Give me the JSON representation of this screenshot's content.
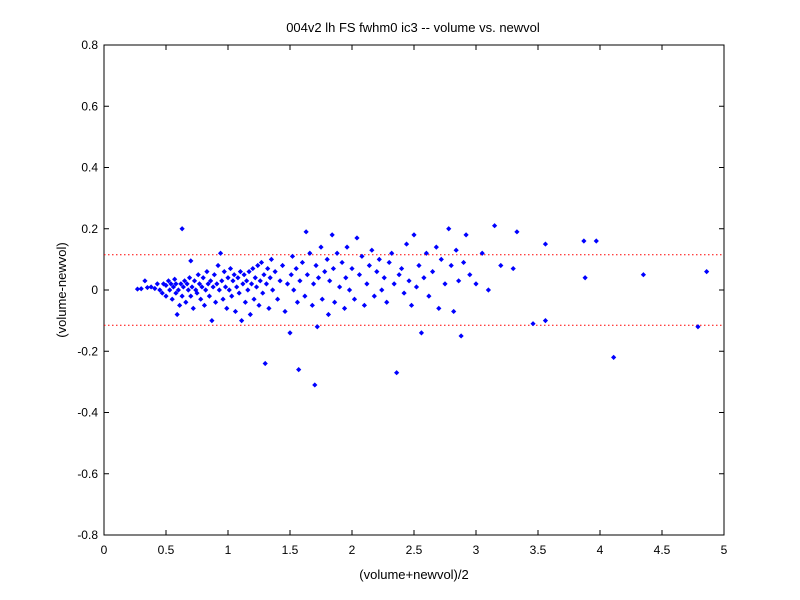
{
  "chart_data": {
    "type": "scatter",
    "title": "004v2 lh FS fwhm0 ic3 -- volume vs. newvol",
    "xlabel": "(volume+newvol)/2",
    "ylabel": "(volume-newvol)",
    "xlim": [
      0,
      5
    ],
    "ylim": [
      -0.8,
      0.8
    ],
    "xticks": [
      0,
      0.5,
      1,
      1.5,
      2,
      2.5,
      3,
      3.5,
      4,
      4.5,
      5
    ],
    "xtick_labels": [
      "0",
      "0.5",
      "1",
      "1.5",
      "2",
      "2.5",
      "3",
      "3.5",
      "4",
      "4.5",
      "5"
    ],
    "yticks": [
      -0.8,
      -0.6,
      -0.4,
      -0.2,
      0,
      0.2,
      0.4,
      0.6,
      0.8
    ],
    "ytick_labels": [
      "-0.8",
      "-0.6",
      "-0.4",
      "-0.2",
      "0",
      "0.2",
      "0.4",
      "0.6",
      "0.8"
    ],
    "grid": false,
    "marker_color": "#0000ff",
    "reference_line_color": "#ff0000",
    "reference_lines_y": [
      0.115,
      -0.115
    ],
    "series": [
      {
        "marker": "diamond",
        "points": [
          [
            0.27,
            0.003
          ],
          [
            0.3,
            0.004
          ],
          [
            0.33,
            0.03
          ],
          [
            0.35,
            0.008
          ],
          [
            0.38,
            0.01
          ],
          [
            0.41,
            0.005
          ],
          [
            0.43,
            0.02
          ],
          [
            0.45,
            0.0
          ],
          [
            0.47,
            -0.01
          ],
          [
            0.48,
            0.02
          ],
          [
            0.5,
            0.015
          ],
          [
            0.5,
            -0.02
          ],
          [
            0.52,
            0.03
          ],
          [
            0.53,
            0.0
          ],
          [
            0.54,
            0.02
          ],
          [
            0.55,
            -0.03
          ],
          [
            0.56,
            0.01
          ],
          [
            0.57,
            0.035
          ],
          [
            0.58,
            -0.01
          ],
          [
            0.58,
            0.02
          ],
          [
            0.59,
            -0.08
          ],
          [
            0.6,
            0.0
          ],
          [
            0.61,
            -0.05
          ],
          [
            0.62,
            0.02
          ],
          [
            0.63,
            0.2
          ],
          [
            0.63,
            -0.02
          ],
          [
            0.64,
            0.01
          ],
          [
            0.65,
            0.03
          ],
          [
            0.66,
            -0.04
          ],
          [
            0.67,
            0.02
          ],
          [
            0.68,
            0.0
          ],
          [
            0.69,
            0.04
          ],
          [
            0.7,
            -0.02
          ],
          [
            0.7,
            0.095
          ],
          [
            0.71,
            0.01
          ],
          [
            0.72,
            -0.06
          ],
          [
            0.73,
            0.03
          ],
          [
            0.74,
            0.0
          ],
          [
            0.75,
            -0.01
          ],
          [
            0.76,
            0.05
          ],
          [
            0.77,
            0.02
          ],
          [
            0.78,
            -0.03
          ],
          [
            0.79,
            0.01
          ],
          [
            0.8,
            0.04
          ],
          [
            0.81,
            -0.05
          ],
          [
            0.82,
            0.0
          ],
          [
            0.83,
            0.06
          ],
          [
            0.84,
            0.02
          ],
          [
            0.85,
            -0.02
          ],
          [
            0.86,
            0.03
          ],
          [
            0.87,
            -0.1
          ],
          [
            0.88,
            0.01
          ],
          [
            0.89,
            0.05
          ],
          [
            0.9,
            -0.04
          ],
          [
            0.91,
            0.02
          ],
          [
            0.92,
            0.08
          ],
          [
            0.93,
            0.0
          ],
          [
            0.94,
            0.12
          ],
          [
            0.95,
            0.03
          ],
          [
            0.96,
            -0.03
          ],
          [
            0.97,
            0.06
          ],
          [
            0.98,
            0.01
          ],
          [
            0.99,
            -0.06
          ],
          [
            1.0,
            0.04
          ],
          [
            1.01,
            0.0
          ],
          [
            1.02,
            0.07
          ],
          [
            1.03,
            -0.02
          ],
          [
            1.04,
            0.03
          ],
          [
            1.05,
            0.05
          ],
          [
            1.06,
            -0.07
          ],
          [
            1.07,
            0.01
          ],
          [
            1.08,
            0.04
          ],
          [
            1.09,
            -0.01
          ],
          [
            1.1,
            0.06
          ],
          [
            1.11,
            -0.1
          ],
          [
            1.12,
            0.02
          ],
          [
            1.13,
            0.05
          ],
          [
            1.14,
            -0.04
          ],
          [
            1.15,
            0.03
          ],
          [
            1.16,
            0.0
          ],
          [
            1.17,
            0.06
          ],
          [
            1.18,
            -0.08
          ],
          [
            1.19,
            0.02
          ],
          [
            1.2,
            0.07
          ],
          [
            1.21,
            -0.03
          ],
          [
            1.22,
            0.04
          ],
          [
            1.23,
            0.01
          ],
          [
            1.24,
            0.08
          ],
          [
            1.25,
            -0.05
          ],
          [
            1.26,
            0.03
          ],
          [
            1.27,
            0.09
          ],
          [
            1.28,
            -0.01
          ],
          [
            1.29,
            0.05
          ],
          [
            1.3,
            -0.24
          ],
          [
            1.31,
            0.02
          ],
          [
            1.32,
            0.07
          ],
          [
            1.33,
            -0.06
          ],
          [
            1.34,
            0.04
          ],
          [
            1.35,
            0.1
          ],
          [
            1.36,
            0.0
          ],
          [
            1.38,
            0.06
          ],
          [
            1.4,
            -0.03
          ],
          [
            1.42,
            0.03
          ],
          [
            1.44,
            0.08
          ],
          [
            1.46,
            -0.07
          ],
          [
            1.48,
            0.02
          ],
          [
            1.5,
            -0.14
          ],
          [
            1.51,
            0.05
          ],
          [
            1.52,
            0.11
          ],
          [
            1.53,
            0.0
          ],
          [
            1.55,
            0.07
          ],
          [
            1.56,
            -0.04
          ],
          [
            1.57,
            -0.26
          ],
          [
            1.58,
            0.03
          ],
          [
            1.6,
            0.09
          ],
          [
            1.62,
            -0.02
          ],
          [
            1.63,
            0.19
          ],
          [
            1.64,
            0.05
          ],
          [
            1.66,
            0.12
          ],
          [
            1.68,
            -0.05
          ],
          [
            1.69,
            0.02
          ],
          [
            1.7,
            -0.31
          ],
          [
            1.71,
            0.08
          ],
          [
            1.72,
            -0.12
          ],
          [
            1.73,
            0.04
          ],
          [
            1.75,
            0.14
          ],
          [
            1.76,
            -0.03
          ],
          [
            1.78,
            0.06
          ],
          [
            1.8,
            0.1
          ],
          [
            1.81,
            -0.08
          ],
          [
            1.82,
            0.03
          ],
          [
            1.84,
            0.18
          ],
          [
            1.85,
            0.07
          ],
          [
            1.86,
            -0.04
          ],
          [
            1.88,
            0.12
          ],
          [
            1.9,
            0.01
          ],
          [
            1.92,
            0.09
          ],
          [
            1.94,
            -0.06
          ],
          [
            1.95,
            0.04
          ],
          [
            1.96,
            0.14
          ],
          [
            1.98,
            0.0
          ],
          [
            2.0,
            0.07
          ],
          [
            2.02,
            -0.03
          ],
          [
            2.04,
            0.17
          ],
          [
            2.06,
            0.05
          ],
          [
            2.08,
            0.11
          ],
          [
            2.1,
            -0.05
          ],
          [
            2.12,
            0.02
          ],
          [
            2.14,
            0.08
          ],
          [
            2.16,
            0.13
          ],
          [
            2.18,
            -0.02
          ],
          [
            2.2,
            0.06
          ],
          [
            2.22,
            0.1
          ],
          [
            2.24,
            0.0
          ],
          [
            2.26,
            0.04
          ],
          [
            2.28,
            -0.04
          ],
          [
            2.3,
            0.09
          ],
          [
            2.32,
            0.12
          ],
          [
            2.34,
            0.02
          ],
          [
            2.36,
            -0.27
          ],
          [
            2.38,
            0.05
          ],
          [
            2.4,
            0.07
          ],
          [
            2.42,
            -0.01
          ],
          [
            2.44,
            0.15
          ],
          [
            2.46,
            0.03
          ],
          [
            2.48,
            -0.05
          ],
          [
            2.5,
            0.18
          ],
          [
            2.52,
            0.01
          ],
          [
            2.54,
            0.08
          ],
          [
            2.56,
            -0.14
          ],
          [
            2.58,
            0.04
          ],
          [
            2.6,
            0.12
          ],
          [
            2.62,
            -0.02
          ],
          [
            2.65,
            0.06
          ],
          [
            2.68,
            0.14
          ],
          [
            2.7,
            -0.06
          ],
          [
            2.72,
            0.1
          ],
          [
            2.75,
            0.02
          ],
          [
            2.78,
            0.2
          ],
          [
            2.8,
            0.08
          ],
          [
            2.82,
            -0.07
          ],
          [
            2.84,
            0.13
          ],
          [
            2.86,
            0.03
          ],
          [
            2.88,
            -0.15
          ],
          [
            2.9,
            0.09
          ],
          [
            2.92,
            0.18
          ],
          [
            2.95,
            0.05
          ],
          [
            3.0,
            0.02
          ],
          [
            3.05,
            0.12
          ],
          [
            3.1,
            0.0
          ],
          [
            3.15,
            0.21
          ],
          [
            3.2,
            0.08
          ],
          [
            3.3,
            0.07
          ],
          [
            3.33,
            0.19
          ],
          [
            3.46,
            -0.11
          ],
          [
            3.56,
            0.15
          ],
          [
            3.56,
            -0.1
          ],
          [
            3.87,
            0.16
          ],
          [
            3.88,
            0.04
          ],
          [
            3.97,
            0.16
          ],
          [
            4.11,
            -0.22
          ],
          [
            4.35,
            0.05
          ],
          [
            4.79,
            -0.12
          ],
          [
            4.86,
            0.06
          ]
        ]
      }
    ]
  }
}
